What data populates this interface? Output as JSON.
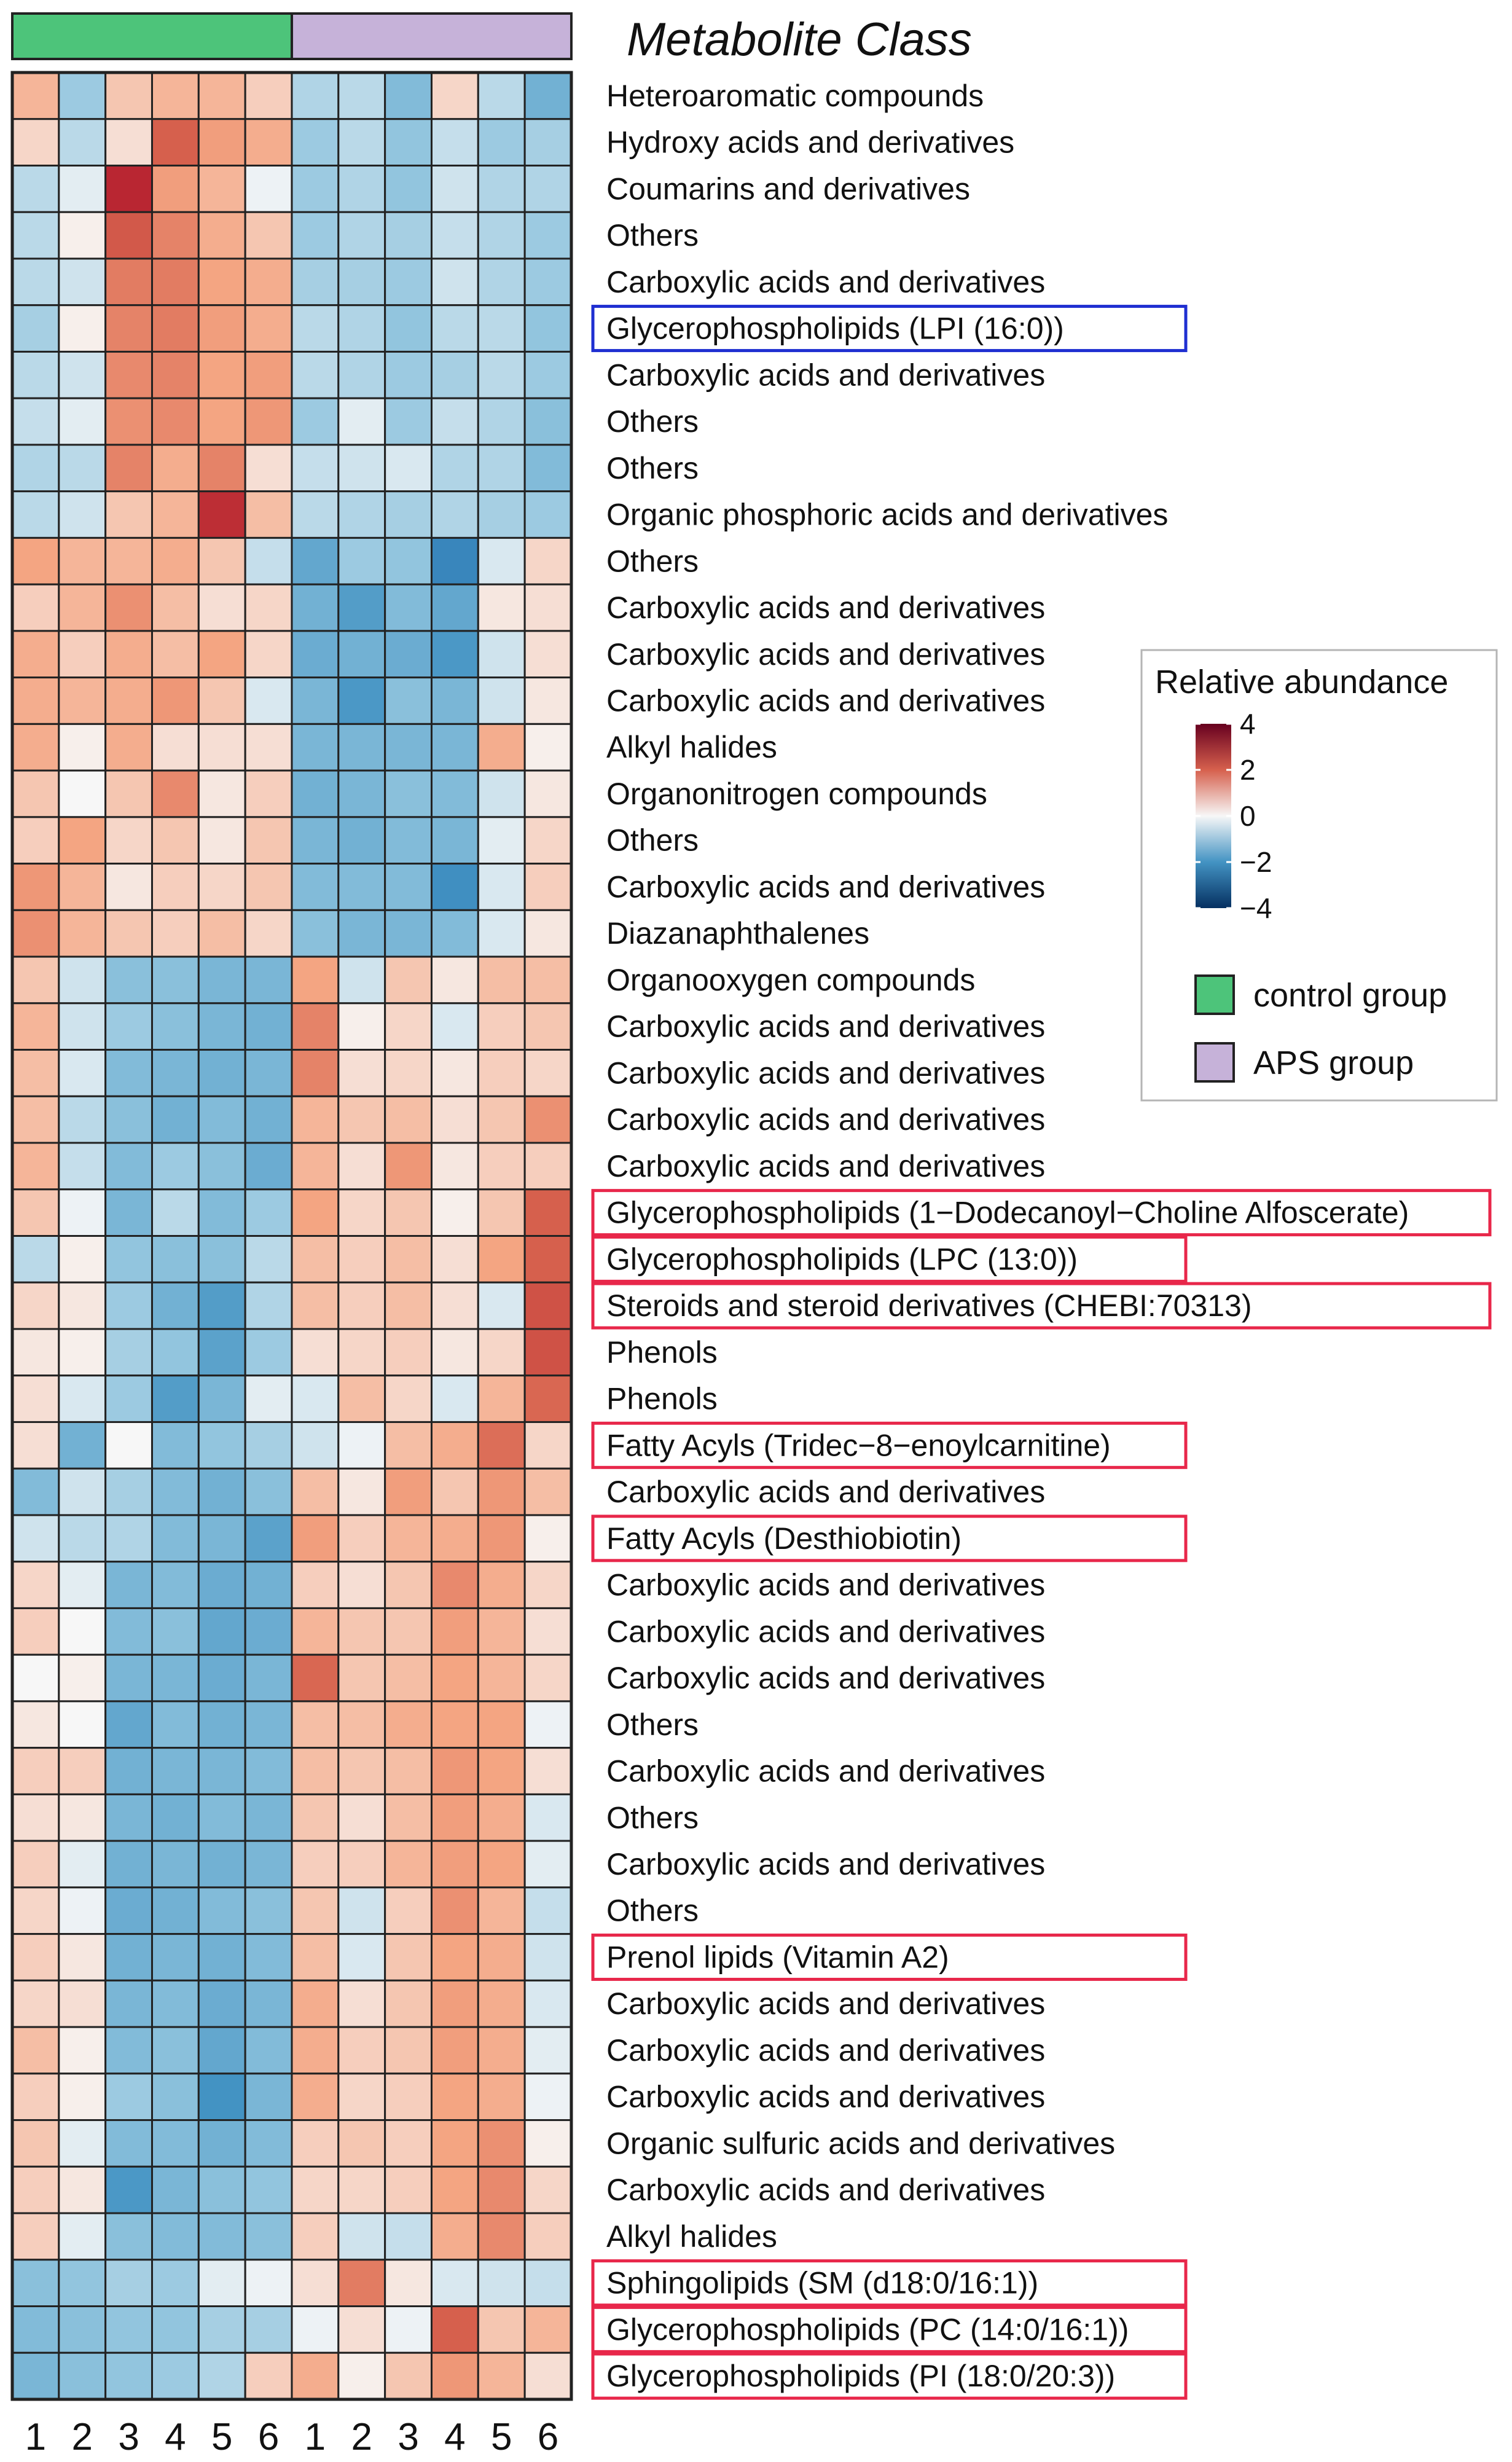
{
  "chart_data": {
    "type": "heatmap",
    "title": "Metabolite Class",
    "colorbar_title": "Relative abundance",
    "color_range": [
      -4,
      4
    ],
    "colorbar_ticks": [
      4,
      2,
      0,
      -2,
      -4
    ],
    "colorbar_tick_labels": [
      "4",
      "2",
      "0",
      "−2",
      "−4"
    ],
    "color_stops": {
      "low": "#053061",
      "mid": "#f7f7f7",
      "high": "#67001f"
    },
    "groups": [
      {
        "name": "control group",
        "color": "#4dc47a",
        "columns": 6
      },
      {
        "name": "APS group",
        "color": "#c6b2d9",
        "columns": 6
      }
    ],
    "column_labels": [
      "1",
      "2",
      "3",
      "4",
      "5",
      "6",
      "1",
      "2",
      "3",
      "4",
      "5",
      "6"
    ],
    "rows": [
      {
        "label": "Heteroaromatic compounds",
        "values": [
          0.8,
          -0.9,
          0.6,
          0.8,
          0.8,
          0.5,
          -0.7,
          -0.6,
          -1.2,
          0.4,
          -0.6,
          -1.4
        ],
        "box": ""
      },
      {
        "label": "Hydroxy acids and derivatives",
        "values": [
          0.4,
          -0.6,
          0.3,
          2.0,
          1.1,
          0.9,
          -0.9,
          -0.6,
          -1.0,
          -0.5,
          -0.9,
          -0.8
        ],
        "box": ""
      },
      {
        "label": "Coumarins and derivatives",
        "values": [
          -0.6,
          -0.2,
          2.8,
          1.1,
          0.8,
          -0.1,
          -0.9,
          -0.7,
          -1.0,
          -0.4,
          -0.7,
          -0.7
        ],
        "box": ""
      },
      {
        "label": "Others",
        "values": [
          -0.6,
          0.1,
          2.1,
          1.5,
          0.9,
          0.6,
          -0.9,
          -0.7,
          -0.8,
          -0.5,
          -0.7,
          -0.9
        ],
        "box": ""
      },
      {
        "label": "Carboxylic acids and derivatives",
        "values": [
          -0.6,
          -0.4,
          1.6,
          1.6,
          1.0,
          0.9,
          -0.8,
          -0.8,
          -0.9,
          -0.4,
          -0.7,
          -0.9
        ],
        "box": ""
      },
      {
        "label": "Glycerophospholipids (LPI (16:0))",
        "values": [
          -0.8,
          0.1,
          1.5,
          1.6,
          1.1,
          0.9,
          -0.6,
          -0.7,
          -1.0,
          -0.6,
          -0.6,
          -1.0
        ],
        "box": "blue"
      },
      {
        "label": "Carboxylic acids and derivatives",
        "values": [
          -0.6,
          -0.4,
          1.4,
          1.5,
          1.0,
          1.1,
          -0.6,
          -0.7,
          -0.9,
          -0.8,
          -0.6,
          -0.9
        ],
        "box": ""
      },
      {
        "label": "Others",
        "values": [
          -0.5,
          -0.2,
          1.3,
          1.4,
          1.0,
          1.2,
          -0.9,
          -0.2,
          -0.9,
          -0.5,
          -0.7,
          -1.1
        ],
        "box": ""
      },
      {
        "label": "Others",
        "values": [
          -0.7,
          -0.6,
          1.5,
          0.9,
          1.5,
          0.3,
          -0.5,
          -0.4,
          -0.3,
          -0.7,
          -0.7,
          -1.2
        ],
        "box": ""
      },
      {
        "label": "Organic phosphoric acids and derivatives",
        "values": [
          -0.6,
          -0.4,
          0.6,
          0.8,
          2.7,
          0.7,
          -0.6,
          -0.7,
          -0.8,
          -0.7,
          -0.8,
          -0.9
        ],
        "box": ""
      },
      {
        "label": "Others",
        "values": [
          1.0,
          0.8,
          0.8,
          0.9,
          0.6,
          -0.5,
          -1.6,
          -0.9,
          -1.0,
          -2.3,
          -0.3,
          0.4
        ],
        "box": ""
      },
      {
        "label": "Carboxylic acids and derivatives",
        "values": [
          0.5,
          0.8,
          1.3,
          0.7,
          0.3,
          0.4,
          -1.4,
          -1.8,
          -1.2,
          -1.6,
          0.2,
          0.3
        ],
        "box": ""
      },
      {
        "label": "Carboxylic acids and derivatives",
        "values": [
          0.9,
          0.5,
          0.9,
          0.7,
          1.0,
          0.4,
          -1.5,
          -1.4,
          -1.5,
          -1.9,
          -0.4,
          0.3
        ],
        "box": ""
      },
      {
        "label": "Carboxylic acids and derivatives",
        "values": [
          0.9,
          0.8,
          0.9,
          1.2,
          0.6,
          -0.3,
          -1.3,
          -1.9,
          -1.1,
          -1.3,
          -0.4,
          0.2
        ],
        "box": ""
      },
      {
        "label": "Alkyl halides",
        "values": [
          0.9,
          0.1,
          0.9,
          0.3,
          0.3,
          0.3,
          -1.3,
          -1.3,
          -1.3,
          -1.3,
          0.9,
          0.1
        ],
        "box": ""
      },
      {
        "label": "Organonitrogen compounds",
        "values": [
          0.6,
          0.0,
          0.6,
          1.4,
          0.2,
          0.5,
          -1.4,
          -1.3,
          -1.1,
          -1.2,
          -0.4,
          0.2
        ],
        "box": ""
      },
      {
        "label": "Others",
        "values": [
          0.5,
          1.0,
          0.4,
          0.6,
          0.2,
          0.6,
          -1.3,
          -1.4,
          -1.2,
          -1.3,
          -0.2,
          0.4
        ],
        "box": ""
      },
      {
        "label": "Carboxylic acids and derivatives",
        "values": [
          1.2,
          0.8,
          0.2,
          0.5,
          0.4,
          0.6,
          -1.2,
          -1.2,
          -1.2,
          -2.1,
          -0.3,
          0.5
        ],
        "box": ""
      },
      {
        "label": "Diazanaphthalenes",
        "values": [
          1.3,
          0.8,
          0.6,
          0.5,
          0.7,
          0.4,
          -1.1,
          -1.3,
          -1.3,
          -1.2,
          -0.3,
          0.2
        ],
        "box": ""
      },
      {
        "label": "Organooxygen compounds",
        "values": [
          0.6,
          -0.4,
          -1.1,
          -1.1,
          -1.3,
          -1.3,
          1.0,
          -0.4,
          0.6,
          0.2,
          0.7,
          0.7
        ],
        "box": ""
      },
      {
        "label": "Carboxylic acids and derivatives",
        "values": [
          0.8,
          -0.4,
          -0.9,
          -1.1,
          -1.3,
          -1.4,
          1.5,
          0.1,
          0.4,
          -0.3,
          0.5,
          0.6
        ],
        "box": ""
      },
      {
        "label": "Carboxylic acids and derivatives",
        "values": [
          0.7,
          -0.3,
          -1.2,
          -1.3,
          -1.4,
          -1.3,
          1.5,
          0.3,
          0.4,
          0.2,
          0.5,
          0.4
        ],
        "box": ""
      },
      {
        "label": "Carboxylic acids and derivatives",
        "values": [
          0.7,
          -0.6,
          -1.1,
          -1.4,
          -1.2,
          -1.4,
          0.8,
          0.6,
          0.7,
          0.3,
          0.6,
          1.3
        ],
        "box": ""
      },
      {
        "label": "Carboxylic acids and derivatives",
        "values": [
          0.8,
          -0.5,
          -1.2,
          -0.9,
          -1.1,
          -1.5,
          0.8,
          0.3,
          1.2,
          0.2,
          0.5,
          0.5
        ],
        "box": ""
      },
      {
        "label": "Glycerophospholipids (1−Dodecanoyl−Choline Alfoscerate)",
        "values": [
          0.6,
          -0.1,
          -1.3,
          -0.6,
          -1.2,
          -0.9,
          1.0,
          0.4,
          0.6,
          0.1,
          0.6,
          2.0
        ],
        "box": "red"
      },
      {
        "label": "Glycerophospholipids (LPC (13:0))",
        "values": [
          -0.6,
          0.1,
          -1.0,
          -1.1,
          -1.1,
          -0.6,
          0.7,
          0.5,
          0.7,
          0.3,
          1.0,
          2.0
        ],
        "box": "red"
      },
      {
        "label": "Steroids and steroid derivatives (CHEBI:70313)",
        "values": [
          0.4,
          0.2,
          -0.9,
          -1.4,
          -1.8,
          -0.7,
          0.7,
          0.5,
          0.7,
          0.3,
          -0.3,
          2.2
        ],
        "box": "red"
      },
      {
        "label": "Phenols",
        "values": [
          0.2,
          0.1,
          -0.8,
          -1.0,
          -1.7,
          -0.9,
          0.3,
          0.4,
          0.5,
          0.2,
          0.4,
          2.2
        ],
        "box": ""
      },
      {
        "label": "Phenols",
        "values": [
          0.3,
          -0.3,
          -0.9,
          -1.8,
          -1.3,
          -0.2,
          -0.3,
          0.7,
          0.4,
          -0.3,
          0.8,
          1.9
        ],
        "box": ""
      },
      {
        "label": "Fatty Acyls (Tridec−8−enoylcarnitine)",
        "values": [
          0.3,
          -1.4,
          0.0,
          -1.2,
          -1.0,
          -0.8,
          -0.4,
          -0.1,
          0.7,
          0.9,
          1.8,
          0.4
        ],
        "box": "red"
      },
      {
        "label": "Carboxylic acids and derivatives",
        "values": [
          -1.2,
          -0.4,
          -0.8,
          -1.2,
          -1.4,
          -1.1,
          0.7,
          0.2,
          1.1,
          0.6,
          1.2,
          0.7
        ],
        "box": ""
      },
      {
        "label": "Fatty Acyls (Desthiobiotin)",
        "values": [
          -0.4,
          -0.6,
          -0.7,
          -1.2,
          -1.3,
          -1.7,
          1.1,
          0.5,
          0.8,
          0.9,
          1.2,
          0.1
        ],
        "box": "red"
      },
      {
        "label": "Carboxylic acids and derivatives",
        "values": [
          0.4,
          -0.2,
          -1.3,
          -1.2,
          -1.5,
          -1.4,
          0.5,
          0.3,
          0.6,
          1.4,
          0.9,
          0.4
        ],
        "box": ""
      },
      {
        "label": "Carboxylic acids and derivatives",
        "values": [
          0.5,
          0.0,
          -1.2,
          -1.1,
          -1.6,
          -1.5,
          0.8,
          0.6,
          0.6,
          1.1,
          0.8,
          0.3
        ],
        "box": ""
      },
      {
        "label": "Carboxylic acids and derivatives",
        "values": [
          0.0,
          0.1,
          -1.3,
          -1.3,
          -1.5,
          -1.3,
          1.9,
          0.6,
          0.7,
          1.0,
          0.8,
          0.4
        ],
        "box": ""
      },
      {
        "label": "Others",
        "values": [
          0.2,
          0.0,
          -1.6,
          -1.2,
          -1.4,
          -1.3,
          0.7,
          0.7,
          0.9,
          1.0,
          1.0,
          -0.1
        ],
        "box": ""
      },
      {
        "label": "Carboxylic acids and derivatives",
        "values": [
          0.5,
          0.5,
          -1.4,
          -1.3,
          -1.3,
          -1.2,
          0.7,
          0.6,
          0.7,
          1.2,
          1.0,
          0.3
        ],
        "box": ""
      },
      {
        "label": "Others",
        "values": [
          0.3,
          0.2,
          -1.3,
          -1.4,
          -1.2,
          -1.3,
          0.6,
          0.3,
          0.7,
          1.1,
          0.9,
          -0.3
        ],
        "box": ""
      },
      {
        "label": "Carboxylic acids and derivatives",
        "values": [
          0.5,
          -0.2,
          -1.4,
          -1.3,
          -1.4,
          -1.3,
          0.5,
          0.5,
          0.8,
          1.1,
          1.0,
          -0.2
        ],
        "box": ""
      },
      {
        "label": "Others",
        "values": [
          0.4,
          -0.1,
          -1.5,
          -1.4,
          -1.2,
          -1.1,
          0.6,
          -0.4,
          0.5,
          1.3,
          0.8,
          -0.5
        ],
        "box": ""
      },
      {
        "label": "Prenol lipids (Vitamin A2)",
        "values": [
          0.5,
          0.2,
          -1.4,
          -1.3,
          -1.4,
          -1.2,
          0.7,
          -0.3,
          0.6,
          1.0,
          0.9,
          -0.4
        ],
        "box": "red"
      },
      {
        "label": "Carboxylic acids and derivatives",
        "values": [
          0.4,
          0.3,
          -1.3,
          -1.2,
          -1.5,
          -1.3,
          0.9,
          0.3,
          0.6,
          1.1,
          0.9,
          -0.3
        ],
        "box": ""
      },
      {
        "label": "Carboxylic acids and derivatives",
        "values": [
          0.7,
          0.1,
          -1.2,
          -1.1,
          -1.6,
          -1.2,
          0.9,
          0.5,
          0.6,
          1.1,
          0.9,
          -0.2
        ],
        "box": ""
      },
      {
        "label": "Carboxylic acids and derivatives",
        "values": [
          0.5,
          0.1,
          -0.9,
          -1.1,
          -2.0,
          -1.3,
          0.9,
          0.4,
          0.5,
          1.0,
          0.9,
          -0.1
        ],
        "box": ""
      },
      {
        "label": "Organic sulfuric acids and derivatives",
        "values": [
          0.6,
          -0.2,
          -1.2,
          -1.2,
          -1.4,
          -1.2,
          0.5,
          0.6,
          0.5,
          1.0,
          1.3,
          0.1
        ],
        "box": ""
      },
      {
        "label": "Carboxylic acids and derivatives",
        "values": [
          0.5,
          0.2,
          -1.9,
          -1.3,
          -1.1,
          -1.0,
          0.4,
          0.4,
          0.5,
          1.0,
          1.4,
          0.4
        ],
        "box": ""
      },
      {
        "label": "Alkyl halides",
        "values": [
          0.5,
          -0.2,
          -1.1,
          -1.2,
          -1.2,
          -1.1,
          0.5,
          -0.4,
          -0.5,
          0.9,
          1.4,
          0.5
        ],
        "box": ""
      },
      {
        "label": "Sphingolipids (SM (d18:0/16:1))",
        "values": [
          -1.1,
          -1.0,
          -0.8,
          -0.9,
          -0.2,
          -0.1,
          0.3,
          1.6,
          0.2,
          -0.3,
          -0.4,
          -0.5
        ],
        "box": "red"
      },
      {
        "label": "Glycerophospholipids (PC (14:0/16:1))",
        "values": [
          -1.2,
          -1.1,
          -1.0,
          -1.0,
          -0.8,
          -0.8,
          -0.1,
          0.3,
          -0.1,
          2.0,
          0.6,
          0.8
        ],
        "box": "red"
      },
      {
        "label": "Glycerophospholipids (PI (18:0/20:3))",
        "values": [
          -1.3,
          -1.1,
          -1.0,
          -0.9,
          -0.7,
          0.5,
          0.9,
          0.1,
          0.6,
          1.2,
          0.8,
          0.3
        ],
        "box": "red"
      }
    ]
  }
}
